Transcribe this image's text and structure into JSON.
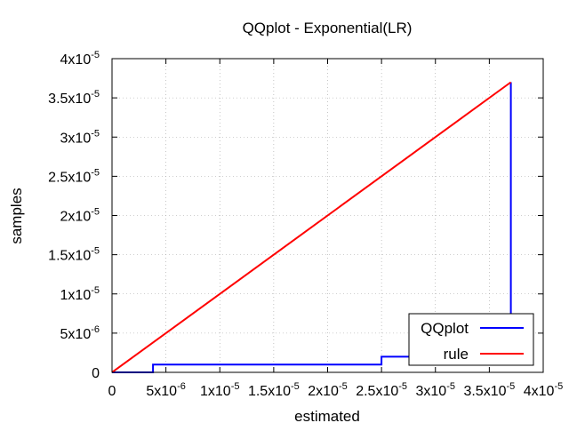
{
  "chart_data": {
    "type": "line",
    "title": "QQplot - Exponential(LR)",
    "xlabel": "estimated",
    "ylabel": "samples",
    "xlim": [
      0,
      4e-05
    ],
    "ylim": [
      0,
      4e-05
    ],
    "grid": true,
    "legend_position": "bottom-right",
    "x_ticks": [
      {
        "value": 0,
        "mantissa": "0",
        "exponent": ""
      },
      {
        "value": 5e-06,
        "mantissa": "5x10",
        "exponent": "-6"
      },
      {
        "value": 1e-05,
        "mantissa": "1x10",
        "exponent": "-5"
      },
      {
        "value": 1.5e-05,
        "mantissa": "1.5x10",
        "exponent": "-5"
      },
      {
        "value": 2e-05,
        "mantissa": "2x10",
        "exponent": "-5"
      },
      {
        "value": 2.5e-05,
        "mantissa": "2.5x10",
        "exponent": "-5"
      },
      {
        "value": 3e-05,
        "mantissa": "3x10",
        "exponent": "-5"
      },
      {
        "value": 3.5e-05,
        "mantissa": "3.5x10",
        "exponent": "-5"
      },
      {
        "value": 4e-05,
        "mantissa": "4x10",
        "exponent": "-5"
      }
    ],
    "y_ticks": [
      {
        "value": 0,
        "mantissa": "0",
        "exponent": ""
      },
      {
        "value": 5e-06,
        "mantissa": "5x10",
        "exponent": "-6"
      },
      {
        "value": 1e-05,
        "mantissa": "1x10",
        "exponent": "-5"
      },
      {
        "value": 1.5e-05,
        "mantissa": "1.5x10",
        "exponent": "-5"
      },
      {
        "value": 2e-05,
        "mantissa": "2x10",
        "exponent": "-5"
      },
      {
        "value": 2.5e-05,
        "mantissa": "2.5x10",
        "exponent": "-5"
      },
      {
        "value": 3e-05,
        "mantissa": "3x10",
        "exponent": "-5"
      },
      {
        "value": 3.5e-05,
        "mantissa": "3.5x10",
        "exponent": "-5"
      },
      {
        "value": 4e-05,
        "mantissa": "4x10",
        "exponent": "-5"
      }
    ],
    "series": [
      {
        "name": "QQplot",
        "color": "#0000ff",
        "step": true,
        "points": [
          {
            "x": 0,
            "y": 0
          },
          {
            "x": 3.8e-06,
            "y": 0
          },
          {
            "x": 3.8e-06,
            "y": 1e-06
          },
          {
            "x": 2.5e-05,
            "y": 1e-06
          },
          {
            "x": 2.5e-05,
            "y": 2e-06
          },
          {
            "x": 3.7e-05,
            "y": 2e-06
          },
          {
            "x": 3.7e-05,
            "y": 3.7e-05
          }
        ]
      },
      {
        "name": "rule",
        "color": "#ff0000",
        "step": false,
        "points": [
          {
            "x": 0,
            "y": 0
          },
          {
            "x": 3.7e-05,
            "y": 3.7e-05
          }
        ]
      }
    ]
  }
}
